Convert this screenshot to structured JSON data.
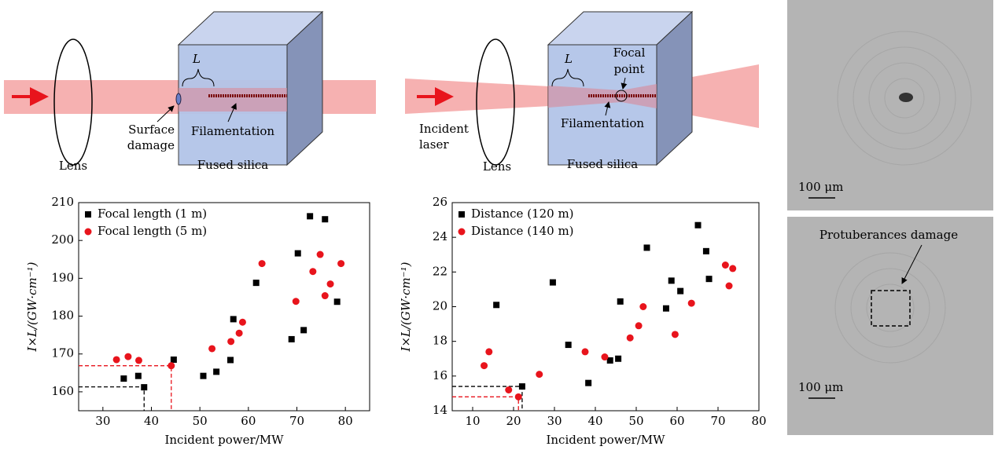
{
  "chart_data": [
    {
      "type": "scatter",
      "x_label": "Incident power/MW",
      "y_label": "I×L/(GW·cm⁻¹)",
      "xlim": [
        25,
        85
      ],
      "xticks": [
        30,
        40,
        50,
        60,
        70,
        80
      ],
      "ylim": [
        155,
        210
      ],
      "yticks": [
        160,
        170,
        180,
        190,
        200,
        210
      ],
      "legend": "upper left",
      "series": [
        {
          "name": "Focal length (1 m)",
          "color": "#000000",
          "marker": "square",
          "x": [
            34.3,
            37.3,
            38.5,
            44.6,
            50.7,
            53.4,
            56.3,
            56.9,
            61.6,
            68.9,
            70.2,
            71.4,
            72.7,
            75.8,
            78.3
          ],
          "values": [
            163.5,
            164.2,
            161.2,
            168.5,
            164.2,
            165.3,
            168.4,
            179.2,
            188.8,
            173.9,
            196.6,
            176.3,
            206.4,
            205.6,
            183.8
          ]
        },
        {
          "name": "Focal length (5 m)",
          "color": "#e8141c",
          "marker": "circle",
          "x": [
            32.8,
            35.2,
            37.4,
            44.1,
            52.5,
            56.4,
            58.1,
            58.8,
            62.8,
            69.8,
            73.3,
            74.8,
            75.8,
            76.9,
            79.1
          ],
          "values": [
            168.5,
            169.3,
            168.3,
            166.9,
            171.4,
            173.3,
            175.5,
            178.4,
            193.9,
            183.9,
            191.8,
            196.3,
            185.4,
            188.5,
            193.9
          ]
        }
      ],
      "guides": [
        {
          "x": 38.5,
          "y": 161.3,
          "color": "#000000"
        },
        {
          "x": 44.1,
          "y": 166.9,
          "color": "#e8141c"
        }
      ]
    },
    {
      "type": "scatter",
      "x_label": "Incident power/MW",
      "y_label": "I×L/(GW·cm⁻¹)",
      "xlim": [
        5,
        80
      ],
      "xticks": [
        10,
        20,
        30,
        40,
        50,
        60,
        70,
        80
      ],
      "ylim": [
        14,
        26
      ],
      "yticks": [
        14,
        16,
        18,
        20,
        22,
        24,
        26
      ],
      "legend": "upper left",
      "series": [
        {
          "name": "Distance (120 m)",
          "color": "#000000",
          "marker": "square",
          "x": [
            15.8,
            22.1,
            29.6,
            33.4,
            38.3,
            43.6,
            45.6,
            46.1,
            52.6,
            57.3,
            58.6,
            60.8,
            65.1,
            67.1,
            67.8
          ],
          "values": [
            20.1,
            15.4,
            21.4,
            17.8,
            15.6,
            16.9,
            17.0,
            20.3,
            23.4,
            19.9,
            21.5,
            20.9,
            24.7,
            23.2,
            21.6
          ]
        },
        {
          "name": "Distance (140 m)",
          "color": "#e8141c",
          "marker": "circle",
          "x": [
            12.8,
            14.0,
            18.8,
            21.2,
            26.3,
            37.5,
            42.3,
            48.5,
            50.6,
            51.7,
            59.5,
            63.5,
            71.8,
            72.7,
            73.6
          ],
          "values": [
            16.6,
            17.4,
            15.2,
            14.8,
            16.1,
            17.4,
            17.1,
            18.2,
            18.9,
            20.0,
            18.4,
            20.2,
            22.4,
            21.2,
            22.2
          ]
        }
      ],
      "guides": [
        {
          "x": 22.1,
          "y": 15.4,
          "color": "#000000"
        },
        {
          "x": 21.2,
          "y": 14.8,
          "color": "#e8141c"
        }
      ]
    }
  ],
  "diagrams": [
    {
      "length_label": "L",
      "damage": [
        "Surface",
        "damage"
      ],
      "filamentation": "Filamentation",
      "lens": "Lens",
      "material": "Fused silica"
    },
    {
      "length_label": "L",
      "focal": [
        "Focal",
        "point"
      ],
      "incident": [
        "Incident",
        "laser"
      ],
      "filamentation": "Filamentation",
      "lens": "Lens",
      "material": "Fused silica"
    }
  ],
  "micrographs": [
    {
      "scale": "100 μm"
    },
    {
      "scale": "100 μm",
      "annotation": "Protuberances damage"
    }
  ]
}
